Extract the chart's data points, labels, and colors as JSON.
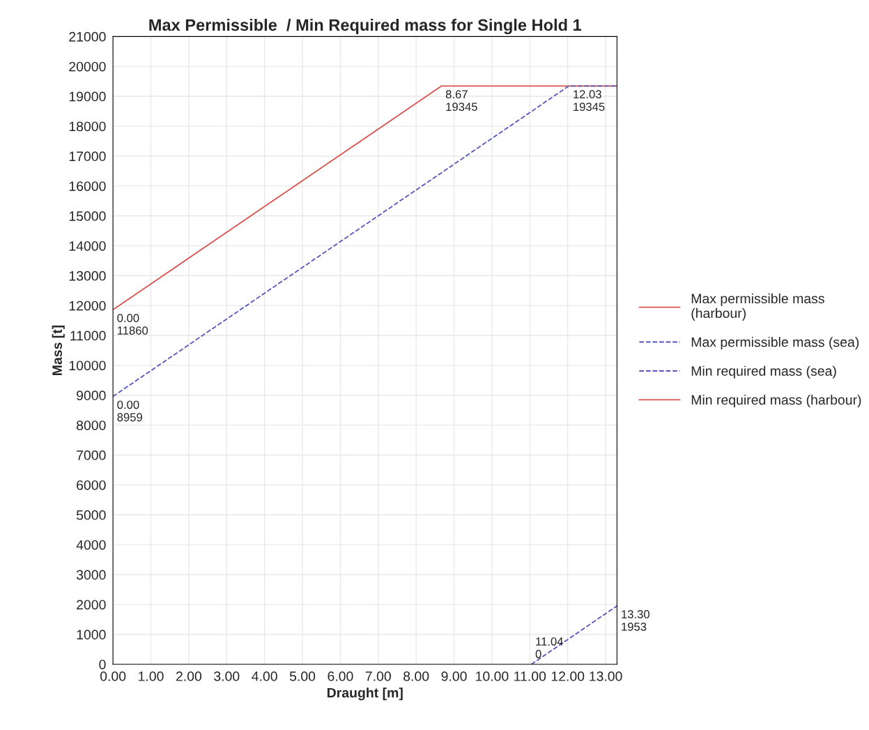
{
  "chart_data": {
    "type": "line",
    "title": "Max Permissible  / Min Required mass for Single Hold 1",
    "xlabel": "Draught [m]",
    "ylabel": "Mass [t]",
    "series": [
      {
        "name": "Max permissible mass\n(harbour)",
        "color": "#d9534f",
        "line_style": "solid",
        "x": [
          0,
          8.67,
          13.3
        ],
        "values": [
          11860,
          19345,
          19345
        ]
      },
      {
        "name": "Max permissible mass (sea)",
        "color": "#5555bb",
        "line_style": "dashed",
        "x": [
          0,
          12.03,
          13.3
        ],
        "values": [
          8959,
          19345,
          19345
        ]
      },
      {
        "name": "Min required mass (sea)",
        "color": "#5555bb",
        "line_style": "dashed",
        "x": [
          11.04,
          13.3
        ],
        "values": [
          0,
          1953
        ]
      },
      {
        "name": "Min required mass (harbour)",
        "color": "#d9534f",
        "line_style": "solid",
        "values": [
          null
        ]
      }
    ],
    "xlim": [
      0,
      13.3
    ],
    "xticks": [
      {
        "value": 0,
        "label": "0.00"
      },
      {
        "value": 1,
        "label": "1.00"
      },
      {
        "value": 2,
        "label": "2.00"
      },
      {
        "value": 3,
        "label": "3.00"
      },
      {
        "value": 4,
        "label": "4.00"
      },
      {
        "value": 5,
        "label": "5.00"
      },
      {
        "value": 6,
        "label": "6.00"
      },
      {
        "value": 7,
        "label": "7.00"
      },
      {
        "value": 8,
        "label": "8.00"
      },
      {
        "value": 9,
        "label": "9.00"
      },
      {
        "value": 10,
        "label": "10.00"
      },
      {
        "value": 11,
        "label": "11.00"
      },
      {
        "value": 12,
        "label": "12.00"
      },
      {
        "value": 13,
        "label": "13.00"
      }
    ],
    "ylim": [
      0,
      21000
    ],
    "yticks": [
      0,
      1000,
      2000,
      3000,
      4000,
      5000,
      6000,
      7000,
      8000,
      9000,
      10000,
      11000,
      12000,
      13000,
      14000,
      15000,
      16000,
      17000,
      18000,
      19000,
      20000,
      21000
    ],
    "annotations": [
      {
        "text": "0.00\n11860",
        "x": 0,
        "y": 11860
      },
      {
        "text": "8.67\n19345",
        "x": 8.67,
        "y": 19345
      },
      {
        "text": "12.03\n19345",
        "x": 12.03,
        "y": 19345
      },
      {
        "text": "0.00\n8959",
        "x": 0,
        "y": 8959
      },
      {
        "text": "11.04\n0",
        "x": 11.04,
        "y": 0
      },
      {
        "text": "13.30\n1953",
        "x": 13.3,
        "y": 1953
      }
    ],
    "grid": true,
    "legend": "right",
    "marker": "none"
  }
}
